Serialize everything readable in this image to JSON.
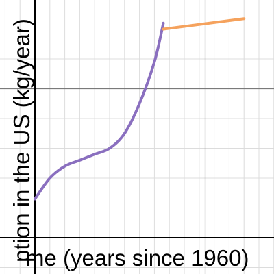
{
  "chart_data": {
    "type": "line",
    "title": "",
    "xlabel": "me (years since 1960)",
    "ylabel": "ption in the US (kg/year)",
    "xlim": [
      -1,
      7
    ],
    "ylim": [
      0,
      8
    ],
    "grid": true,
    "series": [
      {
        "color": "#8a6fbf",
        "x": [
          0,
          0.5,
          1,
          1.5,
          2,
          2.5,
          3,
          3.5,
          4,
          4.3
        ],
        "y": [
          1.3,
          2.0,
          2.4,
          2.6,
          2.8,
          3.0,
          3.5,
          4.5,
          5.9,
          7.2
        ]
      },
      {
        "color": "#f5a25d",
        "x": [
          4.3,
          7
        ],
        "y": [
          7.0,
          7.35
        ]
      }
    ]
  },
  "colors": {
    "background": "#ffffff",
    "minor_grid": "#dcdcdc",
    "major_grid": "#7a7a7a",
    "axis": "#000000"
  }
}
